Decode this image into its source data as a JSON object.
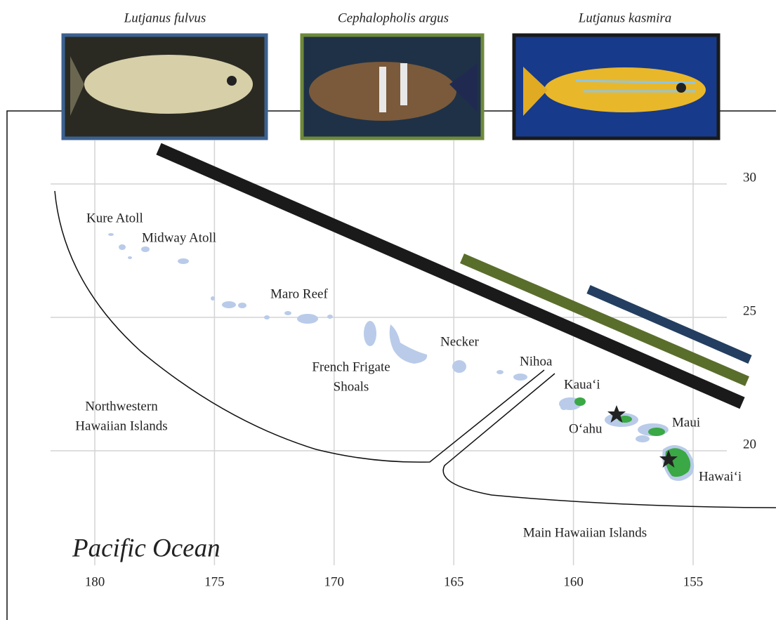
{
  "species": [
    {
      "name": "Lutjanus fulvus"
    },
    {
      "name": "Cephalopholis argus"
    },
    {
      "name": "Lutjanus kasmira"
    }
  ],
  "places": {
    "kure": "Kure Atoll",
    "midway": "Midway Atoll",
    "maro": "Maro Reef",
    "necker": "Necker",
    "french_frigate": [
      "French Frigate",
      "Shoals"
    ],
    "nihoa": "Nihoa",
    "kauai": "Kaua‘i",
    "oahu": "O‘ahu",
    "maui": "Maui",
    "hawaii": "Hawai‘i"
  },
  "regions": {
    "northwestern": [
      "Northwestern",
      "Hawaiian Islands"
    ],
    "main": "Main Hawaiian Islands"
  },
  "ocean_label": "Pacific Ocean",
  "lon_ticks": [
    180,
    175,
    170,
    165,
    160,
    155
  ],
  "lat_ticks": [
    30,
    25,
    20
  ]
}
